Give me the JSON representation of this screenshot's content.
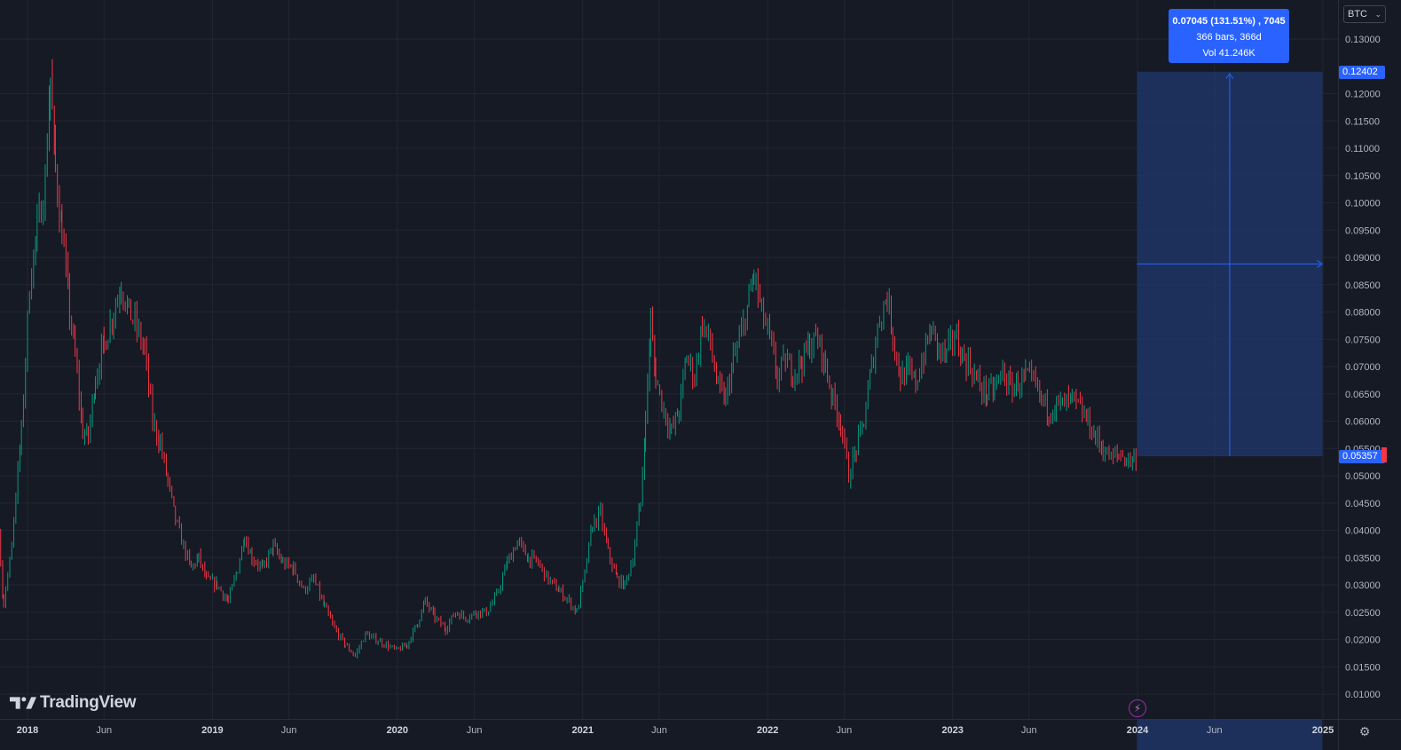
{
  "symbol": {
    "label": "BTC",
    "chevron_icon": "chevron-down-icon"
  },
  "measure": {
    "line1": "0.07045 (131.51%) , 7045",
    "line2": "366 bars, 366d",
    "line3": "Vol 41.246K",
    "high_price": "0.12402",
    "current_price": "0.05357"
  },
  "logo": {
    "text": "TradingView"
  },
  "colors": {
    "background": "#161a25",
    "grid": "#232632",
    "up_candle": "#089981",
    "down_candle": "#f23645",
    "measure_fill": "#1f3566",
    "measure_accent": "#2962ff"
  },
  "chart_data": {
    "type": "candlestick",
    "price_axis": {
      "ticks": [
        "0.13000",
        "0.12000",
        "0.11500",
        "0.11000",
        "0.10500",
        "0.10000",
        "0.09500",
        "0.09000",
        "0.08500",
        "0.08000",
        "0.07500",
        "0.07000",
        "0.06500",
        "0.06000",
        "0.05500",
        "0.05000",
        "0.04500",
        "0.04000",
        "0.03500",
        "0.03000",
        "0.02500",
        "0.02000",
        "0.01500",
        "0.01000"
      ],
      "ylim": [
        0.008,
        0.134
      ]
    },
    "time_axis": {
      "ticks": [
        {
          "label": "2018",
          "date": "2018-01-01",
          "year": true
        },
        {
          "label": "Jun",
          "date": "2018-06-01",
          "year": false
        },
        {
          "label": "2019",
          "date": "2019-01-01",
          "year": true
        },
        {
          "label": "Jun",
          "date": "2019-06-01",
          "year": false
        },
        {
          "label": "2020",
          "date": "2020-01-01",
          "year": true
        },
        {
          "label": "Jun",
          "date": "2020-06-01",
          "year": false
        },
        {
          "label": "2021",
          "date": "2021-01-01",
          "year": true
        },
        {
          "label": "Jun",
          "date": "2021-06-01",
          "year": false
        },
        {
          "label": "2022",
          "date": "2022-01-01",
          "year": true
        },
        {
          "label": "Jun",
          "date": "2022-06-01",
          "year": false
        },
        {
          "label": "2023",
          "date": "2023-01-01",
          "year": true
        },
        {
          "label": "Jun",
          "date": "2023-06-01",
          "year": false
        },
        {
          "label": "2024",
          "date": "2024-01-01",
          "year": true
        },
        {
          "label": "Jun",
          "date": "2024-06-01",
          "year": false
        },
        {
          "label": "2025",
          "date": "2025-01-01",
          "year": true
        }
      ],
      "xlim": [
        "2017-09-20",
        "2025-03-15"
      ]
    },
    "price_path": [
      [
        "2017-09-20",
        0.054
      ],
      [
        "2017-11-01",
        0.045
      ],
      [
        "2017-11-15",
        0.026
      ],
      [
        "2017-12-01",
        0.038
      ],
      [
        "2017-12-20",
        0.058
      ],
      [
        "2018-01-05",
        0.085
      ],
      [
        "2018-01-20",
        0.095
      ],
      [
        "2018-02-05",
        0.104
      ],
      [
        "2018-02-15",
        0.123
      ],
      [
        "2018-02-25",
        0.106
      ],
      [
        "2018-03-10",
        0.095
      ],
      [
        "2018-03-25",
        0.08
      ],
      [
        "2018-04-05",
        0.072
      ],
      [
        "2018-04-20",
        0.058
      ],
      [
        "2018-05-01",
        0.057
      ],
      [
        "2018-05-15",
        0.068
      ],
      [
        "2018-06-01",
        0.074
      ],
      [
        "2018-06-20",
        0.08
      ],
      [
        "2018-07-05",
        0.085
      ],
      [
        "2018-07-20",
        0.08
      ],
      [
        "2018-08-01",
        0.078
      ],
      [
        "2018-08-20",
        0.073
      ],
      [
        "2018-09-05",
        0.06
      ],
      [
        "2018-09-20",
        0.056
      ],
      [
        "2018-10-05",
        0.049
      ],
      [
        "2018-10-20",
        0.042
      ],
      [
        "2018-11-05",
        0.037
      ],
      [
        "2018-11-20",
        0.033
      ],
      [
        "2018-12-05",
        0.035
      ],
      [
        "2018-12-20",
        0.031
      ],
      [
        "2019-01-10",
        0.03
      ],
      [
        "2019-02-01",
        0.027
      ],
      [
        "2019-02-20",
        0.033
      ],
      [
        "2019-03-05",
        0.039
      ],
      [
        "2019-03-20",
        0.035
      ],
      [
        "2019-04-10",
        0.033
      ],
      [
        "2019-05-01",
        0.037
      ],
      [
        "2019-05-20",
        0.034
      ],
      [
        "2019-06-10",
        0.033
      ],
      [
        "2019-06-30",
        0.029
      ],
      [
        "2019-07-20",
        0.031
      ],
      [
        "2019-08-10",
        0.026
      ],
      [
        "2019-08-30",
        0.022
      ],
      [
        "2019-09-20",
        0.019
      ],
      [
        "2019-10-10",
        0.017
      ],
      [
        "2019-10-30",
        0.021
      ],
      [
        "2019-11-20",
        0.02
      ],
      [
        "2019-12-10",
        0.019
      ],
      [
        "2019-12-30",
        0.018
      ],
      [
        "2020-01-20",
        0.019
      ],
      [
        "2020-02-10",
        0.023
      ],
      [
        "2020-02-25",
        0.027
      ],
      [
        "2020-03-15",
        0.024
      ],
      [
        "2020-04-05",
        0.022
      ],
      [
        "2020-04-25",
        0.025
      ],
      [
        "2020-05-15",
        0.024
      ],
      [
        "2020-06-05",
        0.025
      ],
      [
        "2020-06-25",
        0.025
      ],
      [
        "2020-07-15",
        0.028
      ],
      [
        "2020-08-05",
        0.034
      ],
      [
        "2020-08-25",
        0.038
      ],
      [
        "2020-09-15",
        0.035
      ],
      [
        "2020-10-05",
        0.034
      ],
      [
        "2020-10-25",
        0.031
      ],
      [
        "2020-11-15",
        0.029
      ],
      [
        "2020-12-05",
        0.027
      ],
      [
        "2020-12-20",
        0.025
      ],
      [
        "2021-01-05",
        0.032
      ],
      [
        "2021-01-20",
        0.041
      ],
      [
        "2021-02-05",
        0.043
      ],
      [
        "2021-02-20",
        0.036
      ],
      [
        "2021-03-10",
        0.031
      ],
      [
        "2021-03-25",
        0.03
      ],
      [
        "2021-04-10",
        0.035
      ],
      [
        "2021-04-25",
        0.045
      ],
      [
        "2021-05-05",
        0.06
      ],
      [
        "2021-05-15",
        0.078
      ],
      [
        "2021-05-25",
        0.068
      ],
      [
        "2021-06-10",
        0.062
      ],
      [
        "2021-06-25",
        0.058
      ],
      [
        "2021-07-10",
        0.062
      ],
      [
        "2021-07-25",
        0.072
      ],
      [
        "2021-08-10",
        0.068
      ],
      [
        "2021-08-25",
        0.078
      ],
      [
        "2021-09-10",
        0.074
      ],
      [
        "2021-09-25",
        0.066
      ],
      [
        "2021-10-10",
        0.064
      ],
      [
        "2021-10-25",
        0.071
      ],
      [
        "2021-11-10",
        0.076
      ],
      [
        "2021-11-25",
        0.082
      ],
      [
        "2021-12-05",
        0.087
      ],
      [
        "2021-12-20",
        0.08
      ],
      [
        "2022-01-05",
        0.075
      ],
      [
        "2022-01-20",
        0.068
      ],
      [
        "2022-02-05",
        0.071
      ],
      [
        "2022-02-20",
        0.069
      ],
      [
        "2022-03-10",
        0.071
      ],
      [
        "2022-03-25",
        0.074
      ],
      [
        "2022-04-10",
        0.075
      ],
      [
        "2022-04-25",
        0.07
      ],
      [
        "2022-05-10",
        0.064
      ],
      [
        "2022-05-25",
        0.06
      ],
      [
        "2022-06-10",
        0.05
      ],
      [
        "2022-06-25",
        0.055
      ],
      [
        "2022-07-10",
        0.06
      ],
      [
        "2022-07-25",
        0.07
      ],
      [
        "2022-08-10",
        0.079
      ],
      [
        "2022-08-25",
        0.083
      ],
      [
        "2022-09-05",
        0.076
      ],
      [
        "2022-09-20",
        0.068
      ],
      [
        "2022-10-05",
        0.069
      ],
      [
        "2022-10-20",
        0.067
      ],
      [
        "2022-11-05",
        0.072
      ],
      [
        "2022-11-20",
        0.077
      ],
      [
        "2022-12-05",
        0.073
      ],
      [
        "2022-12-20",
        0.072
      ],
      [
        "2023-01-05",
        0.076
      ],
      [
        "2023-01-20",
        0.072
      ],
      [
        "2023-02-05",
        0.07
      ],
      [
        "2023-02-20",
        0.067
      ],
      [
        "2023-03-10",
        0.065
      ],
      [
        "2023-03-25",
        0.066
      ],
      [
        "2023-04-10",
        0.069
      ],
      [
        "2023-04-25",
        0.066
      ],
      [
        "2023-05-10",
        0.067
      ],
      [
        "2023-05-25",
        0.068
      ],
      [
        "2023-06-10",
        0.067
      ],
      [
        "2023-06-25",
        0.064
      ],
      [
        "2023-07-10",
        0.062
      ],
      [
        "2023-07-25",
        0.063
      ],
      [
        "2023-08-10",
        0.063
      ],
      [
        "2023-08-25",
        0.064
      ],
      [
        "2023-09-10",
        0.062
      ],
      [
        "2023-09-25",
        0.06
      ],
      [
        "2023-10-10",
        0.057
      ],
      [
        "2023-10-25",
        0.055
      ],
      [
        "2023-11-10",
        0.053
      ],
      [
        "2023-11-25",
        0.054
      ],
      [
        "2023-12-10",
        0.053
      ],
      [
        "2023-12-25",
        0.053
      ],
      [
        "2024-01-01",
        0.054
      ]
    ],
    "measure_box": {
      "from_date": "2023-12-31",
      "to_date": "2024-12-31",
      "from_price": 0.05357,
      "to_price": 0.12402
    }
  }
}
